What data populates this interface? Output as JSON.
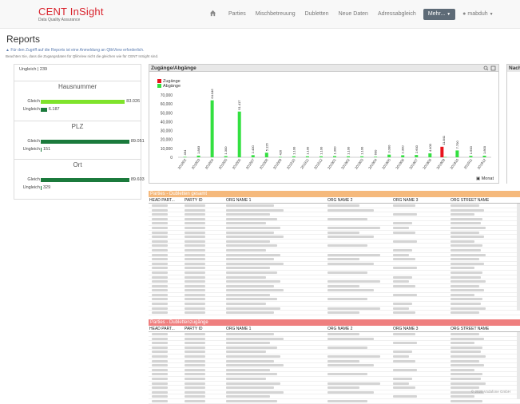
{
  "brand": {
    "title": "CENT InSight",
    "subtitle": "Data Quality Assurance"
  },
  "nav": {
    "items": [
      "Parties",
      "Mischbetreuung",
      "Dubletten",
      "Neue Daten",
      "Adressabgleich"
    ],
    "more_label": "Mehr...",
    "user_label": "mabduh"
  },
  "page": {
    "title": "Reports",
    "notice": "Für den Zugriff auf die Reports ist eine Anmeldung an QlikView erforderlich.",
    "notice2": "Beachten Sie, dass die Zugangsdaten für QlikView nicht die gleichen wie für CENT InSight sind."
  },
  "left_panel": {
    "top_row": {
      "label": "Ungleich",
      "value": "239"
    },
    "sections": [
      {
        "title": "Hausnummer",
        "rows": [
          {
            "label": "Gleich",
            "value": "83.026",
            "fraction": 0.94,
            "color": "#7fe32b"
          },
          {
            "label": "Ungleich",
            "value": "6.187",
            "fraction": 0.07,
            "color": "#1b7a3c"
          }
        ]
      },
      {
        "title": "PLZ",
        "rows": [
          {
            "label": "Gleich",
            "value": "89.051",
            "fraction": 0.99,
            "color": "#1b7a3c"
          },
          {
            "label": "Ungleich",
            "value": "151",
            "fraction": 0.003,
            "color": "#1b7a3c"
          }
        ]
      },
      {
        "title": "Ort",
        "rows": [
          {
            "label": "Gleich",
            "value": "89.603",
            "fraction": 0.99,
            "color": "#1b7a3c"
          },
          {
            "label": "Ungleich",
            "value": "329",
            "fraction": 0.004,
            "color": "#1b7a3c"
          }
        ]
      }
    ]
  },
  "chart_panel": {
    "title": "Zugänge/Abgänge",
    "x_axis_label": "Monat",
    "side_panel_title": "Nach"
  },
  "chart_data": {
    "type": "bar",
    "title": "Zugänge/Abgänge",
    "xlabel": "Monat",
    "ylim": [
      0,
      70000
    ],
    "yticks": [
      "70,000",
      "60,000",
      "50,000",
      "40,000",
      "30,000",
      "20,000",
      "10,000",
      "0"
    ],
    "categories": [
      "201802",
      "201803",
      "201804",
      "201805",
      "201806",
      "201807",
      "201808",
      "201809",
      "201810",
      "201811",
      "201812",
      "201901",
      "201902",
      "201903",
      "201904",
      "201905",
      "201906",
      "201907",
      "201908",
      "201909",
      "201910",
      "201911",
      "201912"
    ],
    "series": [
      {
        "name": "Zugänge",
        "color": "#e8141c",
        "values": [
          0,
          0,
          0,
          0,
          0,
          0,
          0,
          0,
          0,
          0,
          0,
          0,
          0,
          0,
          0,
          0,
          0,
          0,
          0,
          11841,
          0,
          0,
          0
        ]
      },
      {
        "name": "Abgänge",
        "color": "#33e040",
        "values": [
          464,
          1883,
          64046,
          1300,
          51417,
          2400,
          5126,
          426,
          1100,
          1100,
          1100,
          1300,
          1100,
          1100,
          600,
          3000,
          2300,
          2600,
          4400,
          400,
          7700,
          1600,
          1800
        ]
      }
    ],
    "bar_labels": [
      "464",
      "1.883",
      "64.046",
      "1.300",
      "51.417",
      "2.400",
      "5.126",
      "426",
      "1.100",
      "1.100",
      "1.100",
      "1.300",
      "1.100",
      "1.100",
      "600",
      "3.000",
      "2.300",
      "2.600",
      "4.400",
      "11.841",
      "7.700",
      "1.600",
      "1.800"
    ]
  },
  "table1": {
    "title": "Parties - Dubletten gesamt",
    "color": "#f5b97c",
    "columns": [
      "HEAD PART...",
      "PARTY ID",
      "ORG NAME 1",
      "ORG NAME 2",
      "ORG NAME 3",
      "ORG STREET NAME"
    ],
    "row_count": 25
  },
  "table2": {
    "title": "Parties - Dublettenzugänge",
    "color": "#ef7f7f",
    "columns": [
      "HEAD PART...",
      "PARTY ID",
      "ORG NAME 1",
      "ORG NAME 2",
      "ORG NAME 3",
      "ORG STREET NAME"
    ],
    "row_count": 16
  },
  "footer_note": "© 2020 Vodafone GmbH"
}
